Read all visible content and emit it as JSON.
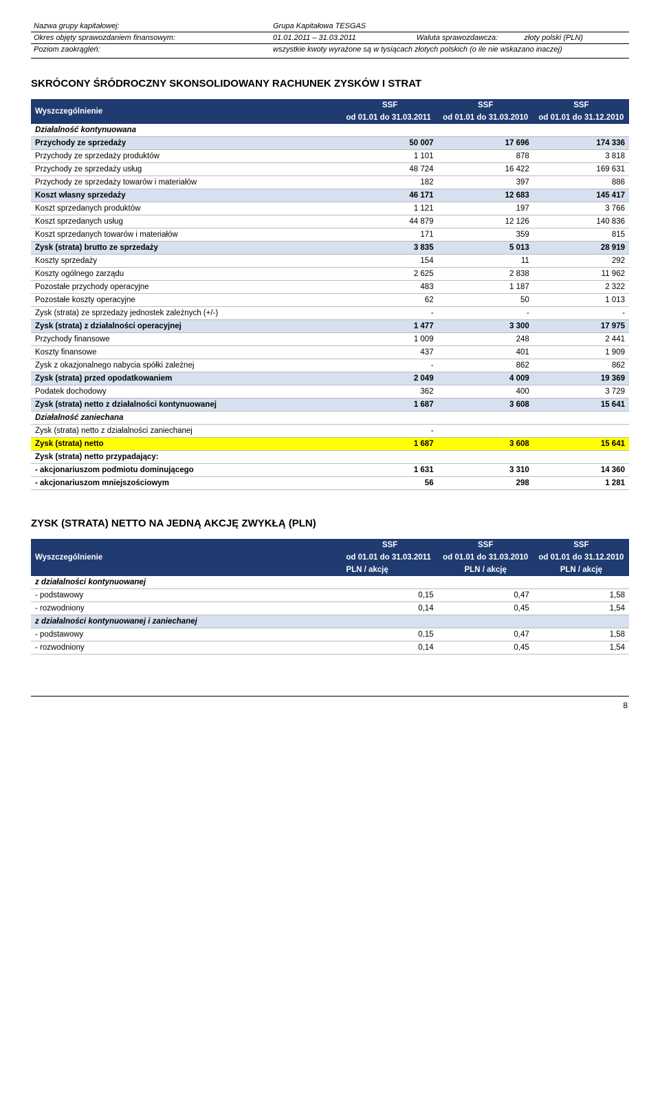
{
  "header": {
    "group_label": "Nazwa grupy kapitałowej:",
    "group_value": "Grupa Kapitałowa TESGAS",
    "period_label": "Okres objęty sprawozdaniem finansowym:",
    "period_value": "01.01.2011 – 31.03.2011",
    "currency_label": "Waluta sprawozdawcza:",
    "currency_value": "złoty polski (PLN)",
    "rounding_label": "Poziom zaokrągleń:",
    "rounding_value": "wszystkie kwoty wyrażone są w tysiącach złotych polskich (o ile nie wskazano inaczej)"
  },
  "pl_table": {
    "title": "SKRÓCONY ŚRÓDROCZNY SKONSOLIDOWANY RACHUNEK ZYSKÓW I STRAT",
    "col_label": "Wyszczególnienie",
    "cols": [
      {
        "top": "SSF",
        "sub": "od 01.01 do 31.03.2011"
      },
      {
        "top": "SSF",
        "sub": "od 01.01 do 31.03.2010"
      },
      {
        "top": "SSF",
        "sub": "od 01.01 do 31.12.2010"
      }
    ],
    "rows": [
      {
        "label": "Działalność kontynuowana",
        "v": [
          "",
          "",
          ""
        ],
        "cls": "section"
      },
      {
        "label": "Przychody ze sprzedaży",
        "v": [
          "50 007",
          "17 696",
          "174 336"
        ],
        "cls": "bold shade"
      },
      {
        "label": "Przychody ze sprzedaży produktów",
        "v": [
          "1 101",
          "878",
          "3 818"
        ],
        "cls": ""
      },
      {
        "label": "Przychody ze sprzedaży usług",
        "v": [
          "48 724",
          "16 422",
          "169 631"
        ],
        "cls": ""
      },
      {
        "label": "Przychody ze sprzedaży towarów i materiałów",
        "v": [
          "182",
          "397",
          "886"
        ],
        "cls": ""
      },
      {
        "label": "Koszt własny sprzedaży",
        "v": [
          "46 171",
          "12 683",
          "145 417"
        ],
        "cls": "bold shade"
      },
      {
        "label": "Koszt sprzedanych produktów",
        "v": [
          "1 121",
          "197",
          "3 766"
        ],
        "cls": ""
      },
      {
        "label": "Koszt sprzedanych usług",
        "v": [
          "44 879",
          "12 126",
          "140 836"
        ],
        "cls": ""
      },
      {
        "label": "Koszt sprzedanych towarów i materiałów",
        "v": [
          "171",
          "359",
          "815"
        ],
        "cls": ""
      },
      {
        "label": "Zysk (strata) brutto ze sprzedaży",
        "v": [
          "3 835",
          "5 013",
          "28 919"
        ],
        "cls": "bold shade"
      },
      {
        "label": "Koszty sprzedaży",
        "v": [
          "154",
          "11",
          "292"
        ],
        "cls": ""
      },
      {
        "label": "Koszty ogólnego zarządu",
        "v": [
          "2 625",
          "2 838",
          "11 962"
        ],
        "cls": ""
      },
      {
        "label": "Pozostałe przychody operacyjne",
        "v": [
          "483",
          "1 187",
          "2 322"
        ],
        "cls": ""
      },
      {
        "label": "Pozostałe koszty operacyjne",
        "v": [
          "62",
          "50",
          "1 013"
        ],
        "cls": ""
      },
      {
        "label": "Zysk (strata) ze sprzedaży jednostek zależnych (+/-)",
        "v": [
          "-",
          "-",
          "-"
        ],
        "cls": ""
      },
      {
        "label": "Zysk (strata) z działalności operacyjnej",
        "v": [
          "1 477",
          "3 300",
          "17 975"
        ],
        "cls": "bold shade"
      },
      {
        "label": "Przychody finansowe",
        "v": [
          "1 009",
          "248",
          "2 441"
        ],
        "cls": ""
      },
      {
        "label": "Koszty finansowe",
        "v": [
          "437",
          "401",
          "1 909"
        ],
        "cls": ""
      },
      {
        "label": "Zysk z okazjonalnego nabycia spółki zależnej",
        "v": [
          "-",
          "862",
          "862"
        ],
        "cls": ""
      },
      {
        "label": "Zysk (strata) przed opodatkowaniem",
        "v": [
          "2 049",
          "4 009",
          "19 369"
        ],
        "cls": "bold shade"
      },
      {
        "label": "Podatek dochodowy",
        "v": [
          "362",
          "400",
          "3 729"
        ],
        "cls": ""
      },
      {
        "label": "Zysk (strata) netto z działalności kontynuowanej",
        "v": [
          "1 687",
          "3 608",
          "15 641"
        ],
        "cls": "bold shade"
      },
      {
        "label": "Działalność zaniechana",
        "v": [
          "",
          "",
          ""
        ],
        "cls": "section"
      },
      {
        "label": "Zysk (strata) netto z działalności zaniechanej",
        "v": [
          "-",
          "",
          ""
        ],
        "cls": ""
      },
      {
        "label": "Zysk (strata) netto",
        "v": [
          "1 687",
          "3 608",
          "15 641"
        ],
        "cls": "bold highlight"
      },
      {
        "label": "Zysk (strata) netto przypadający:",
        "v": [
          "",
          "",
          ""
        ],
        "cls": "bold"
      },
      {
        "label": "   - akcjonariuszom podmiotu dominującego",
        "v": [
          "1 631",
          "3 310",
          "14 360"
        ],
        "cls": "bold"
      },
      {
        "label": "   - akcjonariuszom mniejszościowym",
        "v": [
          "56",
          "298",
          "1 281"
        ],
        "cls": "bold"
      }
    ]
  },
  "eps_table": {
    "title": "ZYSK (STRATA) NETTO NA JEDNĄ AKCJĘ ZWYKŁĄ (PLN)",
    "col_label": "Wyszczególnienie",
    "cols": [
      {
        "top": "SSF",
        "sub": "od 01.01 do 31.03.2011",
        "unit": "PLN / akcję"
      },
      {
        "top": "SSF",
        "sub": "od 01.01 do 31.03.2010",
        "unit": "PLN / akcję"
      },
      {
        "top": "SSF",
        "sub": "od 01.01 do 31.12.2010",
        "unit": "PLN / akcję"
      }
    ],
    "rows": [
      {
        "label": "z działalności kontynuowanej",
        "v": [
          "",
          "",
          ""
        ],
        "cls": "section"
      },
      {
        "label": "   - podstawowy",
        "v": [
          "0,15",
          "0,47",
          "1,58"
        ],
        "cls": ""
      },
      {
        "label": "   - rozwodniony",
        "v": [
          "0,14",
          "0,45",
          "1,54"
        ],
        "cls": ""
      },
      {
        "label": "z działalności kontynuowanej i zaniechanej",
        "v": [
          "",
          "",
          ""
        ],
        "cls": "section shade"
      },
      {
        "label": "   - podstawowy",
        "v": [
          "0,15",
          "0,47",
          "1,58"
        ],
        "cls": ""
      },
      {
        "label": "   - rozwodniony",
        "v": [
          "0,14",
          "0,45",
          "1,54"
        ],
        "cls": ""
      }
    ]
  },
  "page_number": "8",
  "colors": {
    "header_bg": "#1f3b70",
    "shade_bg": "#d6e0ee",
    "highlight_bg": "#ffff00"
  }
}
